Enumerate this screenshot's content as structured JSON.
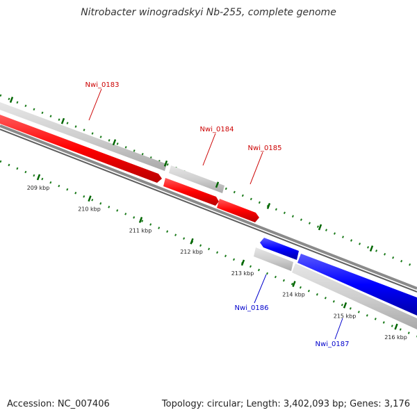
{
  "title": "Nitrobacter winogradskyi Nb-255, complete genome",
  "accession_label": "Accession: NC_007406",
  "topology_label": "Topology: circular; Length: 3,402,093 bp; Genes: 3,176",
  "colors": {
    "forward_gene": "#ff0000",
    "reverse_gene": "#0000ff",
    "gene_label_forward": "#cc0000",
    "gene_label_reverse": "#0000cc",
    "cds_gray": "#c8c8c8",
    "backbone": "#7a7a7a",
    "tick": "#006600"
  },
  "scale_ticks": [
    "209 kbp",
    "210 kbp",
    "211 kbp",
    "212 kbp",
    "213 kbp",
    "214 kbp",
    "215 kbp",
    "216 kbp"
  ],
  "genes": [
    {
      "name": "Nwi_0183",
      "strand": "+"
    },
    {
      "name": "Nwi_0184",
      "strand": "+"
    },
    {
      "name": "Nwi_0185",
      "strand": "+"
    },
    {
      "name": "Nwi_0186",
      "strand": "-"
    },
    {
      "name": "Nwi_0187",
      "strand": "-"
    }
  ]
}
